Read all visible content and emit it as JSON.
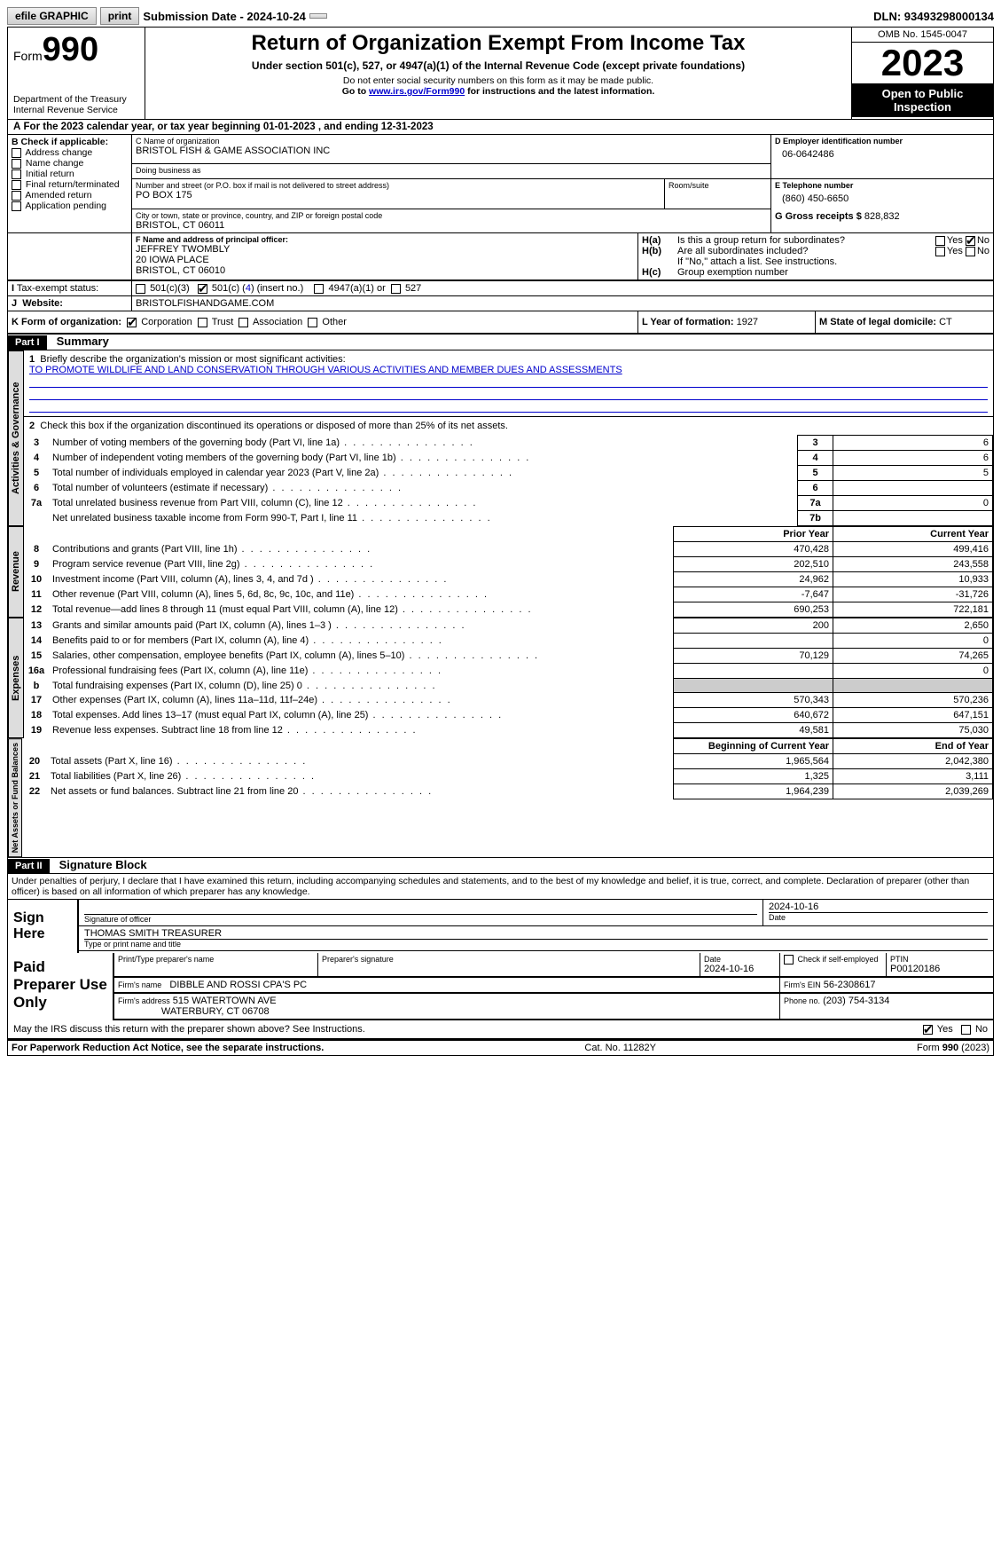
{
  "topbar": {
    "efile": "efile GRAPHIC",
    "print": "print",
    "submission": "Submission Date - 2024-10-24",
    "dln": "DLN: 93493298000134"
  },
  "header": {
    "form_word": "Form",
    "form_num": "990",
    "dept1": "Department of the Treasury",
    "dept2": "Internal Revenue Service",
    "title": "Return of Organization Exempt From Income Tax",
    "sub1": "Under section 501(c), 527, or 4947(a)(1) of the Internal Revenue Code (except private foundations)",
    "sub2": "Do not enter social security numbers on this form as it may be made public.",
    "sub3a": "Go to ",
    "sub3_link": "www.irs.gov/Form990",
    "sub3b": " for instructions and the latest information.",
    "omb": "OMB No. 1545-0047",
    "year": "2023",
    "inspect": "Open to Public Inspection"
  },
  "lineA": "For the 2023 calendar year, or tax year beginning 01-01-2023   , and ending 12-31-2023",
  "boxB": {
    "title": "B Check if applicable:",
    "opts": [
      "Address change",
      "Name change",
      "Initial return",
      "Final return/terminated",
      "Amended return",
      "Application pending"
    ]
  },
  "boxC": {
    "name_label": "C Name of organization",
    "name": "BRISTOL FISH & GAME ASSOCIATION INC",
    "dba_label": "Doing business as",
    "street_label": "Number and street (or P.O. box if mail is not delivered to street address)",
    "street": "PO BOX 175",
    "room_label": "Room/suite",
    "city_label": "City or town, state or province, country, and ZIP or foreign postal code",
    "city": "BRISTOL, CT  06011"
  },
  "boxD": {
    "label": "D Employer identification number",
    "value": "06-0642486"
  },
  "boxE": {
    "label": "E Telephone number",
    "value": "(860) 450-6650"
  },
  "boxG": {
    "label": "G Gross receipts $",
    "value": "828,832"
  },
  "boxF": {
    "label": "F  Name and address of principal officer:",
    "name": "JEFFREY TWOMBLY",
    "addr1": "20 IOWA PLACE",
    "addr2": "BRISTOL, CT  06010"
  },
  "boxH": {
    "a": "Is this a group return for subordinates?",
    "b": "Are all subordinates included?",
    "note": "If \"No,\" attach a list. See instructions.",
    "c": "Group exemption number",
    "yes": "Yes",
    "no": "No"
  },
  "boxI": {
    "label": "Tax-exempt status:",
    "o1": "501(c)(3)",
    "o2a": "501(c) (",
    "o2n": "4",
    "o2b": ") (insert no.)",
    "o3": "4947(a)(1) or",
    "o4": "527"
  },
  "boxJ": {
    "label": "Website:",
    "value": "BRISTOLFISHANDGAME.COM"
  },
  "boxK": {
    "label": "K Form of organization:",
    "o1": "Corporation",
    "o2": "Trust",
    "o3": "Association",
    "o4": "Other"
  },
  "boxL": {
    "label": "L Year of formation:",
    "value": "1927"
  },
  "boxM": {
    "label": "M State of legal domicile:",
    "value": "CT"
  },
  "part1": {
    "header": "Part I",
    "title": "Summary"
  },
  "summary": {
    "q1": "Briefly describe the organization's mission or most significant activities:",
    "mission": "TO PROMOTE WILDLIFE AND LAND CONSERVATION THROUGH VARIOUS ACTIVITIES AND MEMBER DUES AND ASSESSMENTS",
    "q2": "Check this box      if the organization discontinued its operations or disposed of more than 25% of its net assets.",
    "rows_gov": [
      {
        "n": "3",
        "d": "Number of voting members of the governing body (Part VI, line 1a)",
        "box": "3",
        "v": "6"
      },
      {
        "n": "4",
        "d": "Number of independent voting members of the governing body (Part VI, line 1b)",
        "box": "4",
        "v": "6"
      },
      {
        "n": "5",
        "d": "Total number of individuals employed in calendar year 2023 (Part V, line 2a)",
        "box": "5",
        "v": "5"
      },
      {
        "n": "6",
        "d": "Total number of volunteers (estimate if necessary)",
        "box": "6",
        "v": ""
      },
      {
        "n": "7a",
        "d": "Total unrelated business revenue from Part VIII, column (C), line 12",
        "box": "7a",
        "v": "0"
      },
      {
        "n": "",
        "d": "Net unrelated business taxable income from Form 990-T, Part I, line 11",
        "box": "7b",
        "v": ""
      }
    ],
    "col_prior": "Prior Year",
    "col_current": "Current Year",
    "rows_rev": [
      {
        "n": "8",
        "d": "Contributions and grants (Part VIII, line 1h)",
        "p": "470,428",
        "c": "499,416"
      },
      {
        "n": "9",
        "d": "Program service revenue (Part VIII, line 2g)",
        "p": "202,510",
        "c": "243,558"
      },
      {
        "n": "10",
        "d": "Investment income (Part VIII, column (A), lines 3, 4, and 7d )",
        "p": "24,962",
        "c": "10,933"
      },
      {
        "n": "11",
        "d": "Other revenue (Part VIII, column (A), lines 5, 6d, 8c, 9c, 10c, and 11e)",
        "p": "-7,647",
        "c": "-31,726"
      },
      {
        "n": "12",
        "d": "Total revenue—add lines 8 through 11 (must equal Part VIII, column (A), line 12)",
        "p": "690,253",
        "c": "722,181"
      }
    ],
    "rows_exp": [
      {
        "n": "13",
        "d": "Grants and similar amounts paid (Part IX, column (A), lines 1–3 )",
        "p": "200",
        "c": "2,650"
      },
      {
        "n": "14",
        "d": "Benefits paid to or for members (Part IX, column (A), line 4)",
        "p": "",
        "c": "0"
      },
      {
        "n": "15",
        "d": "Salaries, other compensation, employee benefits (Part IX, column (A), lines 5–10)",
        "p": "70,129",
        "c": "74,265"
      },
      {
        "n": "16a",
        "d": "Professional fundraising fees (Part IX, column (A), line 11e)",
        "p": "",
        "c": "0"
      },
      {
        "n": "b",
        "d": "Total fundraising expenses (Part IX, column (D), line 25) 0",
        "p": "GREY",
        "c": "GREY"
      },
      {
        "n": "17",
        "d": "Other expenses (Part IX, column (A), lines 11a–11d, 11f–24e)",
        "p": "570,343",
        "c": "570,236"
      },
      {
        "n": "18",
        "d": "Total expenses. Add lines 13–17 (must equal Part IX, column (A), line 25)",
        "p": "640,672",
        "c": "647,151"
      },
      {
        "n": "19",
        "d": "Revenue less expenses. Subtract line 18 from line 12",
        "p": "49,581",
        "c": "75,030"
      }
    ],
    "col_begin": "Beginning of Current Year",
    "col_end": "End of Year",
    "rows_net": [
      {
        "n": "20",
        "d": "Total assets (Part X, line 16)",
        "p": "1,965,564",
        "c": "2,042,380"
      },
      {
        "n": "21",
        "d": "Total liabilities (Part X, line 26)",
        "p": "1,325",
        "c": "3,111"
      },
      {
        "n": "22",
        "d": "Net assets or fund balances. Subtract line 21 from line 20",
        "p": "1,964,239",
        "c": "2,039,269"
      }
    ]
  },
  "vtabs": {
    "gov": "Activities & Governance",
    "rev": "Revenue",
    "exp": "Expenses",
    "net": "Net Assets or Fund Balances"
  },
  "part2": {
    "header": "Part II",
    "title": "Signature Block"
  },
  "penalty": "Under penalties of perjury, I declare that I have examined this return, including accompanying schedules and statements, and to the best of my knowledge and belief, it is true, correct, and complete. Declaration of preparer (other than officer) is based on all information of which preparer has any knowledge.",
  "sign": {
    "sign_here": "Sign Here",
    "sig_label": "Signature of officer",
    "date_label": "Date",
    "date": "2024-10-16",
    "officer": "THOMAS SMITH TREASURER",
    "type_label": "Type or print name and title"
  },
  "paid": {
    "title": "Paid Preparer Use Only",
    "name_label": "Print/Type preparer's name",
    "sig_label": "Preparer's signature",
    "date_label": "Date",
    "date": "2024-10-16",
    "check_label": "Check        if self-employed",
    "ptin_label": "PTIN",
    "ptin": "P00120186",
    "firm_name_label": "Firm's name",
    "firm_name": "DIBBLE AND ROSSI CPA'S PC",
    "firm_ein_label": "Firm's EIN",
    "firm_ein": "56-2308617",
    "firm_addr_label": "Firm's address",
    "firm_addr1": "515 WATERTOWN AVE",
    "firm_addr2": "WATERBURY, CT  06708",
    "phone_label": "Phone no.",
    "phone": "(203) 754-3134"
  },
  "discuss": {
    "q": "May the IRS discuss this return with the preparer shown above? See Instructions.",
    "yes": "Yes",
    "no": "No"
  },
  "footer": {
    "left": "For Paperwork Reduction Act Notice, see the separate instructions.",
    "mid": "Cat. No. 11282Y",
    "right_a": "Form ",
    "right_b": "990",
    "right_c": " (2023)"
  }
}
